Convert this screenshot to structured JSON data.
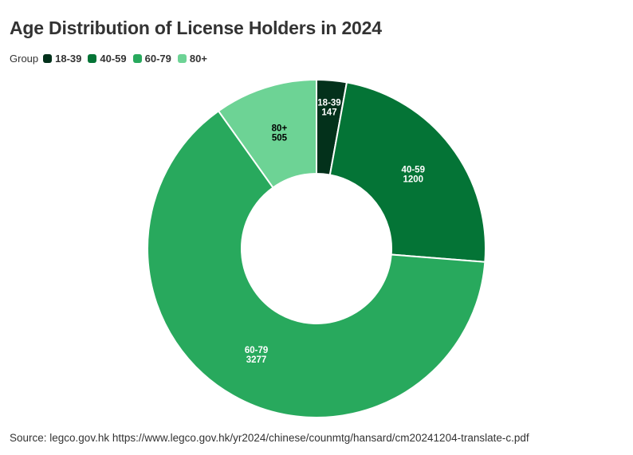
{
  "chart_data": {
    "type": "pie",
    "variant": "donut",
    "title": "Age Distribution of License Holders in 2024",
    "legend_title": "Group",
    "legend_position": "top-left",
    "categories": [
      "18-39",
      "40-59",
      "60-79",
      "80+"
    ],
    "values": [
      147,
      1200,
      3277,
      505
    ],
    "colors": [
      "#03311b",
      "#047436",
      "#28a95d",
      "#6dd395"
    ],
    "label_colors": [
      "#ffffff",
      "#ffffff",
      "#ffffff",
      "#000000"
    ]
  },
  "source": "Source: legco.gov.hk https://www.legco.gov.hk/yr2024/chinese/counmtg/hansard/cm20241204-translate-c.pdf"
}
